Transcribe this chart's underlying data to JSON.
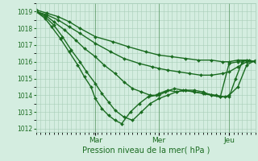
{
  "xlabel": "Pression niveau de la mer( hPa )",
  "bg_color": "#d4ede0",
  "grid_color": "#a8cdb8",
  "line_color": "#1a6b20",
  "ylim": [
    1011.8,
    1019.5
  ],
  "yticks": [
    1012,
    1013,
    1014,
    1015,
    1016,
    1017,
    1018,
    1019
  ],
  "day_labels": [
    "Mar",
    "Mer",
    "Jeu"
  ],
  "day_positions": [
    0.27,
    0.56,
    0.88
  ],
  "figsize": [
    3.2,
    2.0
  ],
  "dpi": 100,
  "lines": [
    {
      "x": [
        0.0,
        0.05,
        0.1,
        0.15,
        0.2,
        0.27,
        0.35,
        0.42,
        0.5,
        0.56,
        0.62,
        0.68,
        0.74,
        0.8,
        0.85,
        0.88,
        0.92,
        0.96,
        1.0
      ],
      "y": [
        1019.1,
        1018.9,
        1018.7,
        1018.4,
        1018.0,
        1017.5,
        1017.2,
        1016.9,
        1016.6,
        1016.4,
        1016.3,
        1016.2,
        1016.1,
        1016.1,
        1016.0,
        1016.0,
        1016.1,
        1016.1,
        1016.0
      ],
      "marker": "D",
      "markersize": 2.0,
      "linewidth": 1.0
    },
    {
      "x": [
        0.0,
        0.05,
        0.1,
        0.15,
        0.2,
        0.27,
        0.34,
        0.4,
        0.47,
        0.53,
        0.56,
        0.6,
        0.65,
        0.7,
        0.75,
        0.8,
        0.85,
        0.88,
        0.92,
        0.96,
        1.0
      ],
      "y": [
        1019.0,
        1018.8,
        1018.5,
        1018.1,
        1017.7,
        1017.1,
        1016.6,
        1016.2,
        1015.9,
        1015.7,
        1015.6,
        1015.5,
        1015.4,
        1015.3,
        1015.2,
        1015.2,
        1015.3,
        1015.4,
        1015.7,
        1016.0,
        1016.0
      ],
      "marker": "D",
      "markersize": 2.0,
      "linewidth": 1.0
    },
    {
      "x": [
        0.0,
        0.04,
        0.08,
        0.13,
        0.18,
        0.22,
        0.27,
        0.31,
        0.36,
        0.4,
        0.44,
        0.48,
        0.52,
        0.56,
        0.59,
        0.63,
        0.67,
        0.72,
        0.77,
        0.82,
        0.86,
        0.88,
        0.92,
        0.96,
        1.0
      ],
      "y": [
        1019.0,
        1018.8,
        1018.4,
        1017.9,
        1017.3,
        1016.8,
        1016.3,
        1015.8,
        1015.3,
        1014.8,
        1014.4,
        1014.2,
        1014.0,
        1014.0,
        1014.2,
        1014.4,
        1014.3,
        1014.2,
        1014.1,
        1014.0,
        1013.9,
        1014.0,
        1014.5,
        1015.8,
        1016.1
      ],
      "marker": "D",
      "markersize": 2.0,
      "linewidth": 1.0
    },
    {
      "x": [
        0.0,
        0.04,
        0.08,
        0.12,
        0.16,
        0.2,
        0.23,
        0.27,
        0.3,
        0.33,
        0.36,
        0.4,
        0.44,
        0.48,
        0.52,
        0.56,
        0.6,
        0.64,
        0.68,
        0.72,
        0.76,
        0.8,
        0.84,
        0.88,
        0.91,
        0.94,
        0.97,
        1.0
      ],
      "y": [
        1019.0,
        1018.7,
        1018.2,
        1017.5,
        1016.7,
        1016.0,
        1015.4,
        1014.7,
        1014.1,
        1013.6,
        1013.1,
        1012.7,
        1012.5,
        1013.0,
        1013.5,
        1013.8,
        1014.0,
        1014.2,
        1014.3,
        1014.3,
        1014.2,
        1014.0,
        1013.9,
        1013.9,
        1015.0,
        1016.0,
        1016.1,
        1016.0
      ],
      "marker": "D",
      "markersize": 2.0,
      "linewidth": 1.0
    },
    {
      "x": [
        0.0,
        0.04,
        0.07,
        0.11,
        0.15,
        0.19,
        0.22,
        0.25,
        0.27,
        0.3,
        0.33,
        0.36,
        0.39,
        0.43,
        0.47,
        0.51,
        0.55,
        0.56,
        0.6,
        0.64,
        0.68,
        0.72,
        0.76,
        0.8,
        0.84,
        0.88,
        0.92,
        0.96,
        1.0
      ],
      "y": [
        1019.0,
        1018.6,
        1018.1,
        1017.4,
        1016.6,
        1015.8,
        1015.1,
        1014.5,
        1013.8,
        1013.2,
        1012.8,
        1012.5,
        1012.3,
        1013.0,
        1013.5,
        1013.9,
        1014.0,
        1014.1,
        1014.3,
        1014.2,
        1014.3,
        1014.2,
        1014.1,
        1014.0,
        1013.9,
        1015.9,
        1016.0,
        1016.1,
        1016.0
      ],
      "marker": "D",
      "markersize": 2.0,
      "linewidth": 1.0
    }
  ]
}
